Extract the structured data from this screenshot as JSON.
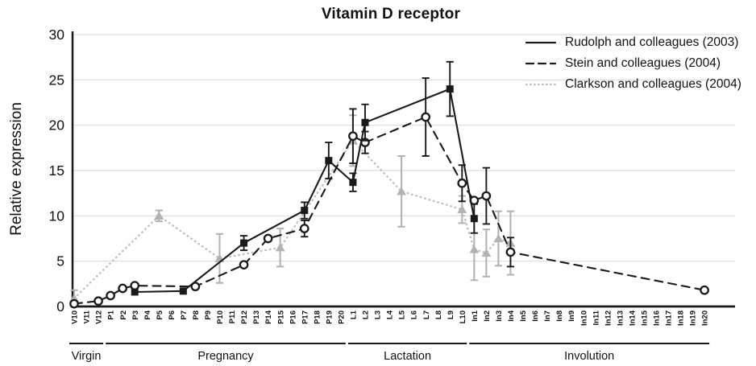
{
  "chart_data": {
    "type": "line",
    "title": "Vitamin D receptor",
    "ylabel": "Relative expression",
    "xlabel": "",
    "ylim": [
      0,
      30
    ],
    "yticks": [
      0,
      5,
      10,
      15,
      20,
      25,
      30
    ],
    "grid": true,
    "legend_position": "top-right",
    "categories": [
      "V10",
      "V11",
      "V12",
      "P1",
      "P2",
      "P3",
      "P4",
      "P5",
      "P6",
      "P7",
      "P8",
      "P9",
      "P10",
      "P11",
      "P12",
      "P13",
      "P14",
      "P15",
      "P16",
      "P17",
      "P18",
      "P19",
      "P20",
      "L1",
      "L2",
      "L3",
      "L4",
      "L5",
      "L6",
      "L7",
      "L8",
      "L9",
      "L10",
      "In1",
      "In2",
      "In3",
      "In4",
      "In5",
      "In6",
      "In7",
      "In8",
      "In9",
      "In10",
      "In11",
      "In12",
      "In13",
      "In14",
      "In15",
      "In16",
      "In17",
      "In18",
      "In19",
      "In20"
    ],
    "groups": [
      {
        "label": "Virgin",
        "from": "V10",
        "to": "V12"
      },
      {
        "label": "Pregnancy",
        "from": "P1",
        "to": "P20"
      },
      {
        "label": "Lactation",
        "from": "L1",
        "to": "L10"
      },
      {
        "label": "Involution",
        "from": "In1",
        "to": "In20"
      }
    ],
    "series": [
      {
        "name": "Clarkson and colleagues (2004)",
        "line_style": "dotted",
        "marker": "triangle",
        "line_color": "#c0c0c0",
        "marker_color": "#b3b3b3",
        "error_color": "#b3b3b3",
        "points": [
          {
            "x": "V10",
            "y": 0.9,
            "e": 0.9
          },
          {
            "x": "P5",
            "y": 10.0,
            "e": 0.6
          },
          {
            "x": "P10",
            "y": 5.3,
            "e": 2.7
          },
          {
            "x": "P15",
            "y": 6.5,
            "e": 2.1
          },
          {
            "x": "L1",
            "y": 18.3,
            "e": 2.8
          },
          {
            "x": "L5",
            "y": 12.7,
            "e": 3.9
          },
          {
            "x": "L10",
            "y": 10.7,
            "e": 1.5
          },
          {
            "x": "In1",
            "y": 6.3,
            "e": 3.4
          },
          {
            "x": "In2",
            "y": 5.9,
            "e": 2.6
          },
          {
            "x": "In3",
            "y": 7.5,
            "e": 3.0
          },
          {
            "x": "In4",
            "y": 7.0,
            "e": 3.5
          }
        ]
      },
      {
        "name": "Stein and colleagues (2004)",
        "line_style": "dashed",
        "marker": "circle",
        "line_color": "#1a1a1a",
        "marker_color": "#ffffff",
        "error_color": "#1a1a1a",
        "points": [
          {
            "x": "V10",
            "y": 0.3,
            "e": null
          },
          {
            "x": "V12",
            "y": 0.6,
            "e": null
          },
          {
            "x": "P1",
            "y": 1.2,
            "e": null
          },
          {
            "x": "P2",
            "y": 2.0,
            "e": null
          },
          {
            "x": "P3",
            "y": 2.3,
            "e": null
          },
          {
            "x": "P8",
            "y": 2.2,
            "e": null
          },
          {
            "x": "P12",
            "y": 4.6,
            "e": null
          },
          {
            "x": "P14",
            "y": 7.5,
            "e": null
          },
          {
            "x": "P17",
            "y": 8.6,
            "e": 0.9
          },
          {
            "x": "L1",
            "y": 18.8,
            "e": 3.0
          },
          {
            "x": "L2",
            "y": 18.1,
            "e": 1.2
          },
          {
            "x": "L7",
            "y": 20.9,
            "e": 4.3
          },
          {
            "x": "L10",
            "y": 13.6,
            "e": 2.0
          },
          {
            "x": "In1",
            "y": 11.7,
            "e": null
          },
          {
            "x": "In2",
            "y": 12.2,
            "e": 3.1
          },
          {
            "x": "In4",
            "y": 6.0,
            "e": 1.6
          },
          {
            "x": "In20",
            "y": 1.8,
            "e": null
          }
        ]
      },
      {
        "name": "Rudolph and colleagues (2003)",
        "line_style": "solid",
        "marker": "square",
        "line_color": "#1a1a1a",
        "marker_color": "#1a1a1a",
        "error_color": "#1a1a1a",
        "points": [
          {
            "x": "P3",
            "y": 1.6,
            "e": null
          },
          {
            "x": "P7",
            "y": 1.7,
            "e": null
          },
          {
            "x": "P12",
            "y": 7.0,
            "e": 0.8
          },
          {
            "x": "P17",
            "y": 10.6,
            "e": 0.9
          },
          {
            "x": "P19",
            "y": 16.1,
            "e": 2.0
          },
          {
            "x": "L1",
            "y": 13.7,
            "e": 1.0
          },
          {
            "x": "L2",
            "y": 20.3,
            "e": 2.0
          },
          {
            "x": "L9",
            "y": 24.0,
            "e": 3.0
          },
          {
            "x": "In1",
            "y": 9.7,
            "e": 1.6
          }
        ]
      }
    ],
    "legend_order": [
      "Rudolph and colleagues (2003)",
      "Stein and colleagues (2004)",
      "Clarkson and colleagues (2004)"
    ],
    "colors": {
      "axis": "#1a1a1a",
      "gridline": "#dcdcdc",
      "text": "#111111",
      "gray_series": "#b3b3b3"
    }
  }
}
